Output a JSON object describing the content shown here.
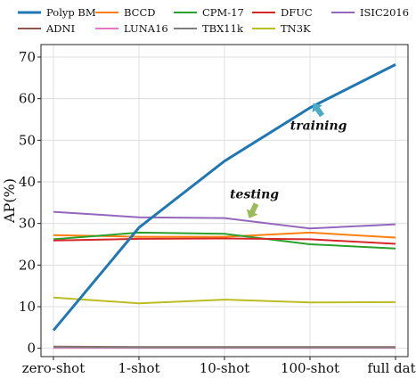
{
  "chart_data": {
    "type": "line",
    "categories": [
      "zero-shot",
      "1-shot",
      "10-shot",
      "100-shot",
      "full data"
    ],
    "ylabel": "AP(%)",
    "xlabel": "",
    "ylim": [
      -2,
      73
    ],
    "yticks": [
      0,
      10,
      20,
      30,
      40,
      50,
      60,
      70
    ],
    "grid": true,
    "legend_placement": "top",
    "series": [
      {
        "name": "Polyp BM",
        "color": "#1f77b4",
        "values": [
          4.3,
          29.0,
          45.0,
          57.8,
          68.2
        ],
        "width": 3.0
      },
      {
        "name": "BCCD",
        "color": "#ff7f0e",
        "values": [
          27.2,
          26.8,
          26.8,
          27.8,
          26.6
        ],
        "width": 2.0
      },
      {
        "name": "CPM-17",
        "color": "#2ca02c",
        "values": [
          26.2,
          27.8,
          27.5,
          25.0,
          24.0
        ],
        "width": 2.0
      },
      {
        "name": "DFUC",
        "color": "#d62728",
        "values": [
          25.9,
          26.3,
          26.4,
          26.2,
          25.1
        ],
        "width": 2.0
      },
      {
        "name": "ISIC2016",
        "color": "#9467bd",
        "values": [
          32.8,
          31.5,
          31.3,
          28.8,
          29.8
        ],
        "width": 2.0
      },
      {
        "name": "ADNI",
        "color": "#8c564b",
        "values": [
          0.4,
          0.3,
          0.3,
          0.3,
          0.3
        ],
        "width": 2.0
      },
      {
        "name": "LUNA16",
        "color": "#e377c2",
        "values": [
          0.1,
          0.1,
          0.1,
          0.1,
          0.1
        ],
        "width": 2.0
      },
      {
        "name": "TBX11k",
        "color": "#7f7f7f",
        "values": [
          0.3,
          0.2,
          0.2,
          0.2,
          0.2
        ],
        "width": 2.0
      },
      {
        "name": "TN3K",
        "color": "#bcbd22",
        "values": [
          12.2,
          10.8,
          11.7,
          11.0,
          11.1
        ],
        "width": 2.0
      }
    ],
    "annotations": [
      {
        "text": "training",
        "arrow_color": "#4bacc6",
        "x_category_index": 3.1,
        "y": 52.5
      },
      {
        "text": "testing",
        "arrow_color": "#9bbb59",
        "x_category_index": 2.35,
        "y": 36.0
      }
    ]
  }
}
